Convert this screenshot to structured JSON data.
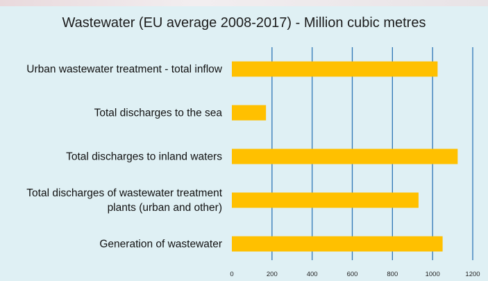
{
  "chart_data": {
    "type": "bar",
    "orientation": "horizontal",
    "title": "Wastewater (EU average 2008-2017) - Million cubic metres",
    "categories": [
      [
        "Urban wastewater treatment - total inflow"
      ],
      [
        "Total discharges to the sea"
      ],
      [
        "Total discharges to inland waters"
      ],
      [
        "Total discharges of wastewater treatment",
        "plants (urban and other)"
      ],
      [
        "Generation of wastewater"
      ]
    ],
    "values": [
      1025,
      170,
      1125,
      930,
      1050
    ],
    "xlim": [
      0,
      1200
    ],
    "xticks": [
      "0",
      "200",
      "400",
      "600",
      "800",
      "1000",
      "1200"
    ],
    "grid": "vertical",
    "bar_color": "#ffc000",
    "grid_color": "#2e75b6"
  }
}
